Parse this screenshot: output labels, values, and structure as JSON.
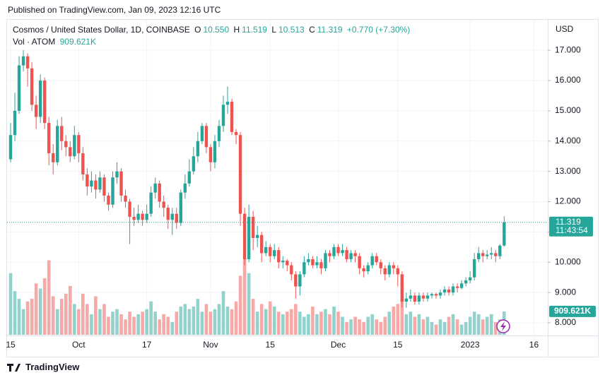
{
  "header": "Published on TradingView.com, Jan 09, 2023 12:16 UTC",
  "footer": "TradingView",
  "chart_data": {
    "type": "candlestick",
    "title": "Cosmos / United States Dollar, 1D, COINBASE",
    "currency": "USD",
    "ohlc_keys": [
      "O",
      "H",
      "L",
      "C"
    ],
    "last_labels": [
      "10.550",
      "11.519",
      "10.513",
      "11.319"
    ],
    "change_label": "+0.770 (+7.30%)",
    "volume_name": "Vol · ATOM",
    "volume_label": "909.621K",
    "countdown": "11:43:54",
    "up_color": "#26a69a",
    "down_color": "#ef5350",
    "up_volume_color": "#92d2cc",
    "down_volume_color": "#f7a9a7",
    "grid": true,
    "ylim": [
      7.58,
      17.96
    ],
    "yticks": [
      {
        "value": 8,
        "label": "8.000"
      },
      {
        "value": 9,
        "label": "9.000"
      },
      {
        "value": 10,
        "label": "10.000"
      },
      {
        "value": 11,
        "label": "11.000"
      },
      {
        "value": 12,
        "label": "12.000"
      },
      {
        "value": 13,
        "label": "13.000"
      },
      {
        "value": 14,
        "label": "14.000"
      },
      {
        "value": 15,
        "label": "15.000"
      },
      {
        "value": 16,
        "label": "16.000"
      },
      {
        "value": 17,
        "label": "17.000"
      }
    ],
    "vlim": [
      0,
      3300000
    ],
    "categories": [
      "15",
      null,
      null,
      null,
      null,
      null,
      null,
      null,
      null,
      null,
      null,
      null,
      null,
      null,
      null,
      null,
      "Oct",
      null,
      null,
      null,
      null,
      null,
      null,
      null,
      null,
      null,
      null,
      null,
      null,
      null,
      null,
      null,
      "17",
      null,
      null,
      null,
      null,
      null,
      null,
      null,
      null,
      null,
      null,
      null,
      null,
      null,
      null,
      "Nov",
      null,
      null,
      null,
      null,
      null,
      null,
      null,
      null,
      null,
      null,
      null,
      null,
      null,
      "15",
      null,
      null,
      null,
      null,
      null,
      null,
      null,
      null,
      null,
      null,
      null,
      null,
      null,
      null,
      null,
      "Dec",
      null,
      null,
      null,
      null,
      null,
      null,
      null,
      null,
      null,
      null,
      null,
      null,
      null,
      "15",
      null,
      null,
      null,
      null,
      null,
      null,
      null,
      null,
      null,
      null,
      null,
      null,
      null,
      null,
      null,
      null,
      "2023",
      null,
      null,
      null,
      null,
      null,
      null,
      null,
      null,
      null,
      null,
      null,
      null,
      null,
      null,
      "16"
    ],
    "open": [
      13.4,
      14.2,
      15.0,
      16.5,
      16.8,
      16.4,
      15.2,
      14.8,
      16.0,
      14.6,
      13.6,
      13.3,
      14.5,
      14.0,
      13.8,
      13.5,
      14.2,
      13.6,
      12.9,
      12.5,
      12.7,
      12.4,
      12.8,
      12.2,
      11.9,
      12.8,
      13.0,
      12.2,
      12.0,
      11.5,
      11.4,
      11.6,
      11.4,
      11.6,
      12.3,
      12.6,
      12.0,
      11.8,
      11.4,
      11.6,
      11.3,
      12.3,
      12.6,
      13.0,
      13.5,
      14.0,
      14.5,
      13.8,
      13.3,
      14.0,
      14.5,
      15.2,
      15.3,
      14.3,
      14.2,
      11.6,
      10.1,
      11.5,
      10.8,
      10.9,
      10.3,
      10.5,
      10.2,
      10.4,
      10.0,
      10.05,
      9.9,
      9.6,
      9.2,
      9.6,
      10.0,
      10.1,
      9.9,
      10.0,
      9.8,
      10.3,
      10.2,
      10.5,
      10.3,
      10.4,
      10.1,
      10.3,
      10.2,
      9.8,
      9.7,
      9.9,
      10.2,
      10.0,
      9.8,
      9.6,
      9.9,
      9.8,
      9.6,
      8.7,
      8.8,
      8.9,
      8.7,
      8.9,
      8.8,
      8.9,
      8.95,
      8.9,
      9.0,
      9.1,
      9.0,
      9.2,
      9.15,
      9.3,
      9.4,
      9.5,
      10.1,
      10.3,
      10.2,
      10.25,
      10.3,
      10.2,
      10.55,
      null,
      null,
      null,
      null,
      null,
      null,
      null
    ],
    "high": [
      14.6,
      15.6,
      16.8,
      17.0,
      16.9,
      16.6,
      15.5,
      16.2,
      16.1,
      14.8,
      13.9,
      14.7,
      14.8,
      14.2,
      14.0,
      14.5,
      14.3,
      13.8,
      13.1,
      13.0,
      12.9,
      13.0,
      12.9,
      12.3,
      13.0,
      13.3,
      13.1,
      12.4,
      12.1,
      11.8,
      11.9,
      11.7,
      11.9,
      12.5,
      12.8,
      12.7,
      12.2,
      11.9,
      11.8,
      11.8,
      12.4,
      12.9,
      13.4,
      13.8,
      14.3,
      14.6,
      14.6,
      13.9,
      14.2,
      14.7,
      15.5,
      15.8,
      15.4,
      14.4,
      14.3,
      11.8,
      11.9,
      11.7,
      11.2,
      11.0,
      10.7,
      10.6,
      10.6,
      10.5,
      10.2,
      10.1,
      10.0,
      9.7,
      9.7,
      10.2,
      10.3,
      10.2,
      10.2,
      10.1,
      10.4,
      10.4,
      10.6,
      10.6,
      10.6,
      10.5,
      10.4,
      10.4,
      10.3,
      9.9,
      10.0,
      10.3,
      10.3,
      10.1,
      9.9,
      10.0,
      10.0,
      9.9,
      9.7,
      9.0,
      9.1,
      9.0,
      9.0,
      9.0,
      9.0,
      9.0,
      9.0,
      9.1,
      9.2,
      9.2,
      9.3,
      9.3,
      9.4,
      9.5,
      9.7,
      10.3,
      10.5,
      10.4,
      10.4,
      10.5,
      10.4,
      10.6,
      11.519,
      null,
      null,
      null,
      null,
      null,
      null,
      null
    ],
    "low": [
      13.3,
      14.0,
      14.9,
      16.3,
      15.8,
      15.0,
      14.4,
      14.6,
      14.4,
      13.2,
      12.9,
      13.2,
      13.7,
      13.5,
      13.3,
      13.4,
      13.3,
      12.7,
      12.2,
      12.3,
      12.1,
      12.3,
      12.0,
      11.7,
      11.8,
      12.6,
      12.0,
      11.8,
      10.6,
      11.2,
      11.3,
      11.2,
      11.3,
      11.5,
      12.1,
      11.8,
      11.5,
      11.1,
      10.9,
      11.1,
      11.2,
      12.1,
      12.5,
      12.9,
      13.3,
      13.9,
      13.6,
      13.0,
      13.1,
      13.8,
      14.3,
      14.9,
      14.2,
      13.9,
      11.2,
      9.9,
      10.0,
      10.4,
      10.5,
      10.0,
      10.2,
      10.0,
      10.1,
      9.8,
      9.8,
      9.7,
      9.4,
      8.8,
      8.9,
      9.5,
      9.9,
      9.8,
      9.8,
      9.6,
      9.7,
      10.0,
      10.1,
      10.2,
      10.2,
      10.0,
      10.0,
      10.0,
      9.6,
      9.5,
      9.6,
      9.8,
      9.9,
      9.6,
      9.4,
      9.5,
      9.6,
      9.2,
      8.5,
      8.5,
      8.7,
      8.6,
      8.6,
      8.7,
      8.7,
      8.8,
      8.8,
      8.8,
      8.9,
      8.9,
      8.9,
      9.0,
      9.1,
      9.2,
      9.3,
      9.4,
      10.0,
      10.0,
      10.1,
      10.1,
      10.0,
      10.1,
      10.513,
      null,
      null,
      null,
      null,
      null,
      null,
      null
    ],
    "close": [
      14.2,
      15.0,
      16.5,
      16.8,
      16.4,
      15.2,
      14.8,
      16.0,
      14.6,
      13.6,
      13.3,
      14.5,
      14.0,
      13.8,
      13.5,
      14.2,
      13.6,
      12.9,
      12.5,
      12.7,
      12.4,
      12.8,
      12.2,
      11.9,
      12.8,
      13.0,
      12.2,
      12.0,
      11.5,
      11.4,
      11.6,
      11.4,
      11.6,
      12.3,
      12.6,
      12.0,
      11.8,
      11.4,
      11.6,
      11.3,
      12.3,
      12.6,
      13.0,
      13.5,
      14.0,
      14.5,
      13.8,
      13.3,
      14.0,
      14.5,
      15.2,
      15.3,
      14.3,
      14.2,
      11.6,
      10.1,
      11.5,
      10.8,
      10.9,
      10.3,
      10.5,
      10.2,
      10.4,
      10.0,
      10.05,
      9.9,
      9.6,
      9.2,
      9.6,
      10.0,
      10.1,
      9.9,
      10.0,
      9.8,
      10.3,
      10.2,
      10.5,
      10.3,
      10.4,
      10.1,
      10.3,
      10.2,
      9.8,
      9.7,
      9.9,
      10.2,
      10.0,
      9.8,
      9.6,
      9.9,
      9.8,
      9.6,
      8.7,
      8.8,
      8.9,
      8.7,
      8.9,
      8.8,
      8.9,
      8.95,
      8.9,
      9.0,
      9.1,
      9.0,
      9.2,
      9.15,
      9.3,
      9.4,
      9.5,
      10.1,
      10.3,
      10.2,
      10.25,
      10.3,
      10.2,
      10.55,
      11.319,
      null,
      null,
      null,
      null,
      null,
      null,
      null
    ],
    "volume": [
      2400000,
      1700000,
      1400000,
      1000000,
      1300000,
      1400000,
      2000000,
      1800000,
      2200000,
      2900000,
      1500000,
      1000000,
      1400000,
      1600000,
      1900000,
      1200000,
      1000000,
      1600000,
      1200000,
      800000,
      1500000,
      1000000,
      1200000,
      700000,
      900000,
      1000000,
      800000,
      600000,
      900000,
      700000,
      800000,
      900000,
      1000000,
      1300000,
      900000,
      600000,
      800000,
      700000,
      500000,
      900000,
      1100000,
      1200000,
      1000000,
      1100000,
      1400000,
      900000,
      1200000,
      900000,
      1000000,
      1200000,
      1700000,
      1100000,
      1000000,
      1300000,
      2300000,
      3000000,
      2400000,
      1400000,
      900000,
      1200000,
      1000000,
      1300000,
      1100000,
      900000,
      800000,
      900000,
      1000000,
      1200000,
      900000,
      700000,
      800000,
      1100000,
      800000,
      900000,
      1000000,
      800000,
      1100000,
      900000,
      700000,
      500000,
      600000,
      700000,
      600000,
      500000,
      700000,
      800000,
      600000,
      500000,
      700000,
      900000,
      1100000,
      1200000,
      1400000,
      800000,
      900000,
      700000,
      800000,
      600000,
      700000,
      500000,
      400000,
      600000,
      500000,
      700000,
      800000,
      600000,
      400000,
      500000,
      700000,
      900000,
      800000,
      600000,
      700000,
      800000,
      500000,
      600000,
      909621,
      null,
      null,
      null,
      null,
      null,
      null,
      null
    ]
  }
}
